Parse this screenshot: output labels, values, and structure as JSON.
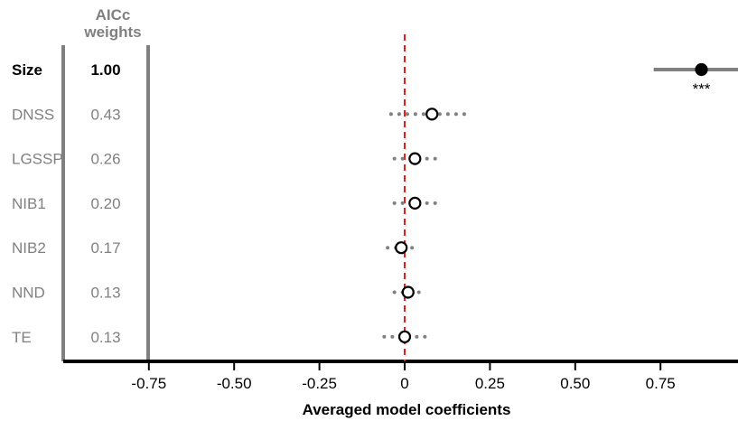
{
  "chart_data": {
    "type": "scatter",
    "weights_header_line1": "AICc",
    "weights_header_line2": "weights",
    "xlabel": "Averaged model coefficients",
    "x_ticks": [
      "-0.75",
      "-0.50",
      "-0.25",
      "0",
      "0.25",
      "0.50",
      "0.75"
    ],
    "x_tick_values": [
      -0.75,
      -0.5,
      -0.25,
      0,
      0.25,
      0.5,
      0.75
    ],
    "xlim": [
      -0.99,
      0.98
    ],
    "reference_line_x": 0,
    "colors": {
      "reference_line": "#e02020",
      "interval": "#808080",
      "significant_point": "#000000",
      "axis": "#000000",
      "muted_text": "#808080"
    },
    "predictors": [
      {
        "name": "Size",
        "weight": "1.00",
        "coef": 0.87,
        "lo": 0.73,
        "hi": 0.98,
        "significant": true,
        "stars": "***"
      },
      {
        "name": "DNSS",
        "weight": "0.43",
        "coef": 0.08,
        "lo": -0.04,
        "hi": 0.19,
        "significant": false,
        "stars": ""
      },
      {
        "name": "LGSSP",
        "weight": "0.26",
        "coef": 0.03,
        "lo": -0.03,
        "hi": 0.09,
        "significant": false,
        "stars": ""
      },
      {
        "name": "NIB1",
        "weight": "0.20",
        "coef": 0.03,
        "lo": -0.03,
        "hi": 0.09,
        "significant": false,
        "stars": ""
      },
      {
        "name": "NIB2",
        "weight": "0.17",
        "coef": -0.01,
        "lo": -0.05,
        "hi": 0.03,
        "significant": false,
        "stars": ""
      },
      {
        "name": "NND",
        "weight": "0.13",
        "coef": 0.01,
        "lo": -0.03,
        "hi": 0.05,
        "significant": false,
        "stars": ""
      },
      {
        "name": "TE",
        "weight": "0.13",
        "coef": 0.0,
        "lo": -0.06,
        "hi": 0.06,
        "significant": false,
        "stars": ""
      }
    ]
  }
}
